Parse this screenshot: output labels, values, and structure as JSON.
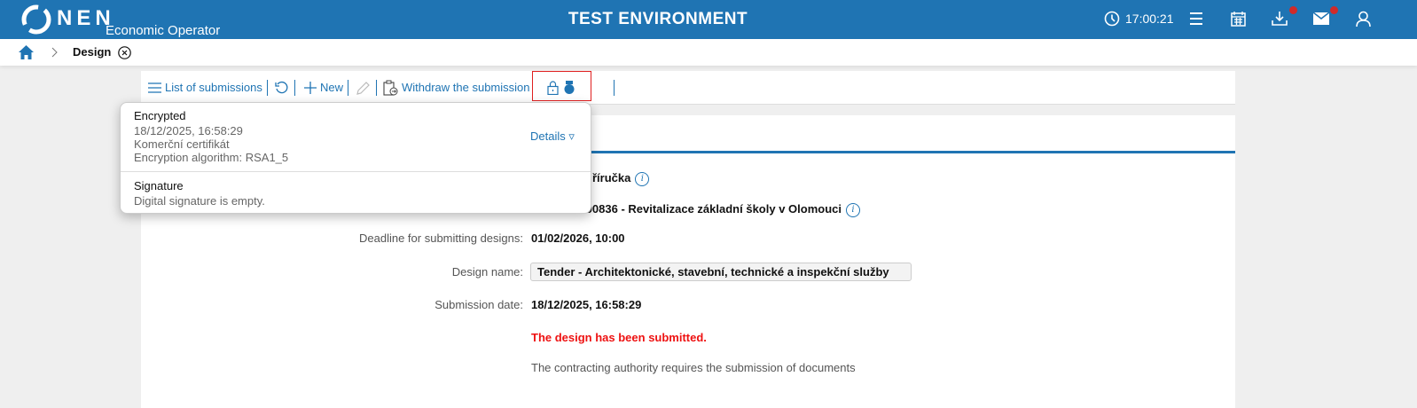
{
  "header": {
    "logo_text": "NEN",
    "subtitle": "Economic Operator",
    "environment": "TEST ENVIRONMENT",
    "time": "17:00:21",
    "brand_color": "#1f74b3",
    "notification_color": "#d02a2a"
  },
  "breadcrumb": {
    "current": "Design"
  },
  "toolbar": {
    "list_label": "List of submissions",
    "new_label": "New",
    "withdraw_label": "Withdraw the submission"
  },
  "popover": {
    "encrypted_title": "Encrypted",
    "encrypted_date": "18/12/2025, 16:58:29",
    "certificate": "Komerční certifikát",
    "algorithm": "Encryption algorithm: RSA1_5",
    "details_label": "Details ▿",
    "signature_title": "Signature",
    "signature_text": "Digital signature is empty."
  },
  "form": {
    "row1_value": "říručka",
    "row2_value": "00000836 - Revitalizace základní školy v Olomouci",
    "deadline_label": "Deadline for submitting designs:",
    "deadline_value": "01/02/2026, 10:00",
    "name_label": "Design name:",
    "name_value": "Tender - Architektonické, stavební, technické a inspekční služby",
    "submission_label": "Submission date:",
    "submission_value": "18/12/2025, 16:58:29",
    "status": "The design has been submitted.",
    "status_color": "#ee1111",
    "note": "The contracting authority requires the submission of documents"
  }
}
